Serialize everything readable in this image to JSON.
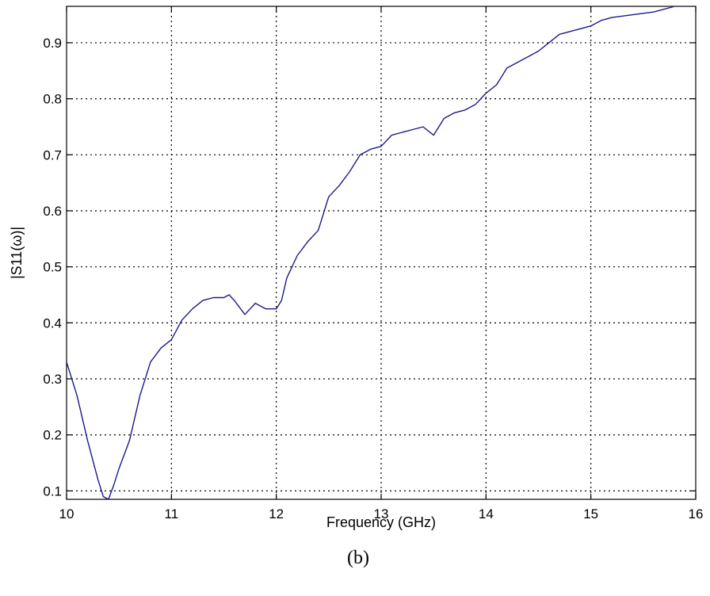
{
  "chart_data": {
    "type": "line",
    "xlabel": "Frequency (GHz)",
    "ylabel": "|S11(ω)|",
    "caption": "(b)",
    "xlim": [
      10,
      16
    ],
    "ylim": [
      0.085,
      0.965
    ],
    "xticks": [
      10,
      11,
      12,
      13,
      14,
      15,
      16
    ],
    "yticks": [
      0.1,
      0.2,
      0.3,
      0.4,
      0.5,
      0.6,
      0.7,
      0.8,
      0.9
    ],
    "grid": true,
    "series": [
      {
        "color": "#1a1a8c",
        "x": [
          10.0,
          10.1,
          10.2,
          10.3,
          10.35,
          10.4,
          10.45,
          10.5,
          10.6,
          10.7,
          10.8,
          10.9,
          11.0,
          11.1,
          11.2,
          11.3,
          11.4,
          11.5,
          11.55,
          11.6,
          11.7,
          11.8,
          11.9,
          12.0,
          12.05,
          12.1,
          12.2,
          12.3,
          12.4,
          12.5,
          12.6,
          12.7,
          12.8,
          12.9,
          13.0,
          13.1,
          13.2,
          13.3,
          13.4,
          13.5,
          13.6,
          13.7,
          13.8,
          13.9,
          14.0,
          14.1,
          14.2,
          14.3,
          14.4,
          14.5,
          14.6,
          14.7,
          14.8,
          14.9,
          15.0,
          15.1,
          15.2,
          15.4,
          15.6,
          15.8
        ],
        "y": [
          0.33,
          0.27,
          0.19,
          0.12,
          0.09,
          0.085,
          0.11,
          0.14,
          0.19,
          0.27,
          0.33,
          0.355,
          0.37,
          0.405,
          0.425,
          0.44,
          0.445,
          0.445,
          0.45,
          0.44,
          0.415,
          0.435,
          0.425,
          0.425,
          0.44,
          0.48,
          0.52,
          0.545,
          0.565,
          0.625,
          0.645,
          0.67,
          0.7,
          0.71,
          0.715,
          0.735,
          0.74,
          0.745,
          0.75,
          0.735,
          0.765,
          0.775,
          0.78,
          0.79,
          0.81,
          0.825,
          0.855,
          0.865,
          0.875,
          0.885,
          0.9,
          0.915,
          0.92,
          0.925,
          0.93,
          0.94,
          0.945,
          0.95,
          0.955,
          0.965
        ]
      }
    ]
  }
}
